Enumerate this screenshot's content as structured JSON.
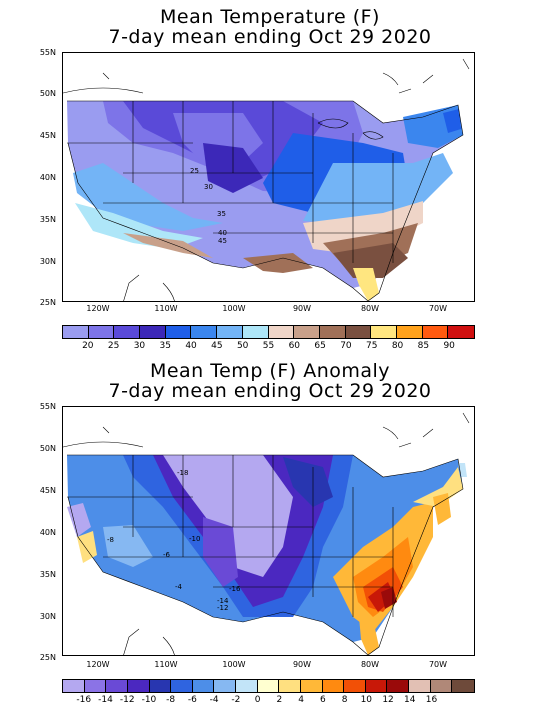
{
  "panels": [
    {
      "title_line1": "Mean Temperature (F)",
      "title_line2": "7-day mean ending Oct 29 2020",
      "lat_labels": [
        "55N",
        "50N",
        "45N",
        "40N",
        "35N",
        "30N",
        "25N"
      ],
      "lon_labels": [
        "120W",
        "110W",
        "100W",
        "90W",
        "80W",
        "70W"
      ],
      "contour_labels": [
        "25",
        "30",
        "35",
        "40",
        "45"
      ],
      "colorbar_ticks": [
        "20",
        "25",
        "30",
        "35",
        "40",
        "45",
        "50",
        "55",
        "60",
        "65",
        "70",
        "75",
        "80",
        "85",
        "90"
      ],
      "colorbar_colors": [
        "#9a9cf0",
        "#7d74e8",
        "#5a4ad8",
        "#3c28b8",
        "#1f5ee8",
        "#3b86ee",
        "#73b4f6",
        "#aee6f8",
        "#efd5c8",
        "#c8a08a",
        "#a07058",
        "#7a5040",
        "#ffe680",
        "#ffa21c",
        "#ff5a10",
        "#d01010"
      ]
    },
    {
      "title_line1": "Mean Temp (F) Anomaly",
      "title_line2": "7-day mean ending Oct 29 2020",
      "lat_labels": [
        "55N",
        "50N",
        "45N",
        "40N",
        "35N",
        "30N",
        "25N"
      ],
      "lon_labels": [
        "120W",
        "110W",
        "100W",
        "90W",
        "80W",
        "70W"
      ],
      "contour_labels": [
        "-18",
        "-8",
        "-6",
        "-4",
        "-10",
        "-14",
        "-12",
        "-16"
      ],
      "colorbar_ticks": [
        "-16",
        "-14",
        "-12",
        "-10",
        "-8",
        "-6",
        "-4",
        "-2",
        "0",
        "2",
        "4",
        "6",
        "8",
        "10",
        "12",
        "14",
        "16"
      ],
      "colorbar_colors": [
        "#b4a8f0",
        "#8b73e6",
        "#6a4ad6",
        "#4b28c0",
        "#2836b0",
        "#2f64e0",
        "#4d8ee8",
        "#86b8f2",
        "#c2e4f8",
        "#ffffd0",
        "#ffe080",
        "#ffb838",
        "#ff8a10",
        "#f25006",
        "#c81808",
        "#9a0a0a",
        "#e2c0b4",
        "#b08878",
        "#6e4a3a"
      ]
    }
  ]
}
